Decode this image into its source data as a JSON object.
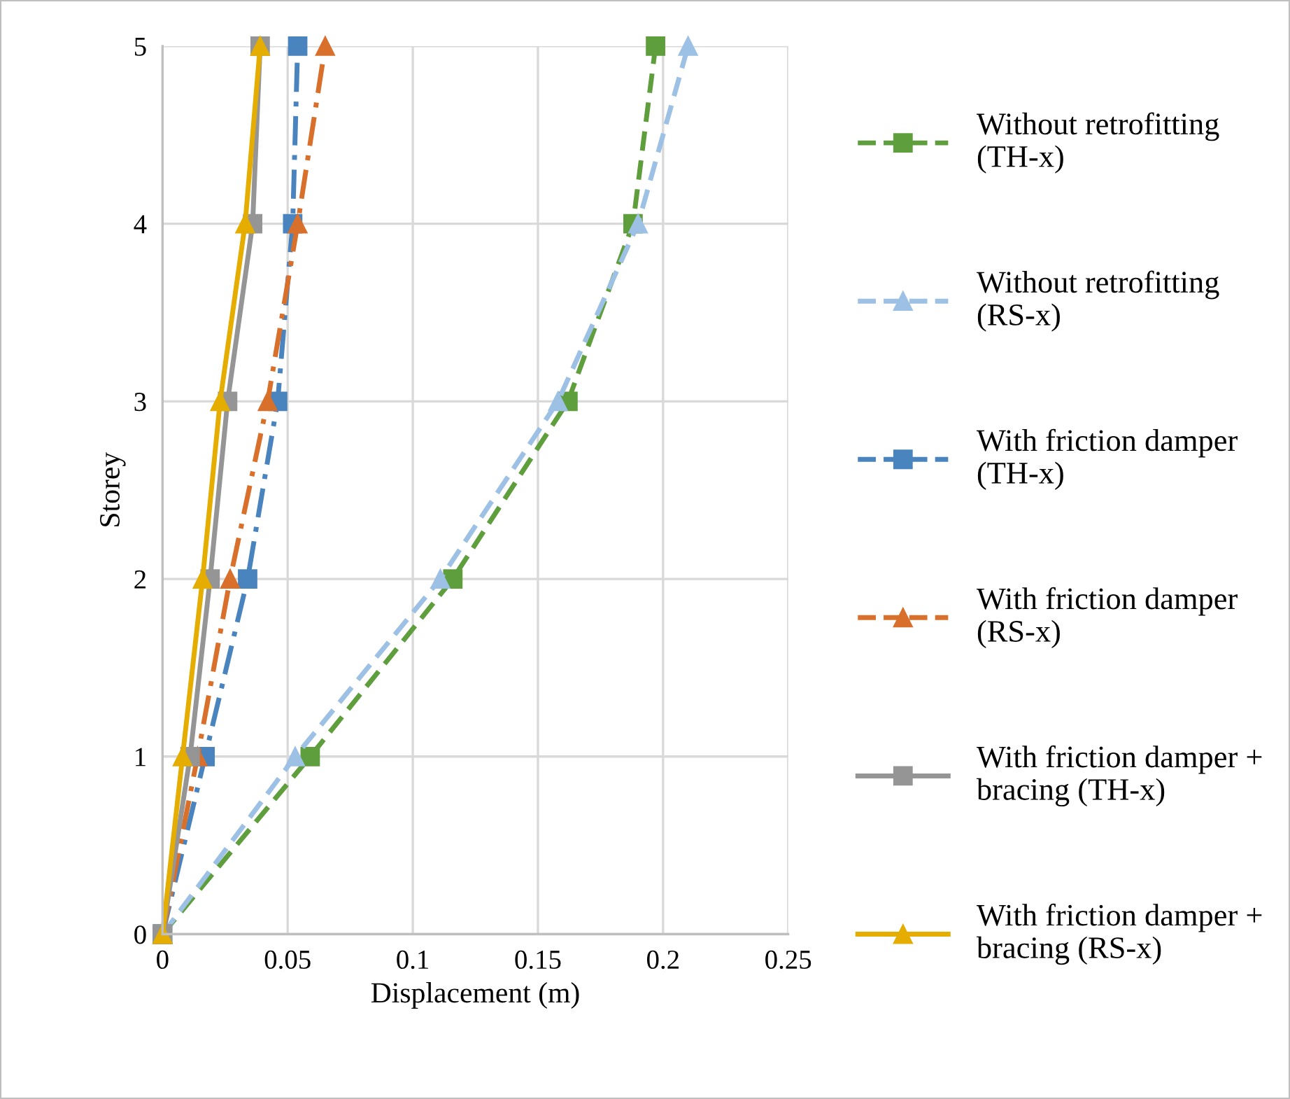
{
  "chart_data": {
    "type": "line",
    "xlabel": "Displacement (m)",
    "ylabel": "Storey",
    "xlim": [
      0,
      0.25
    ],
    "ylim": [
      0,
      5
    ],
    "xticks": [
      0,
      0.05,
      0.1,
      0.15,
      0.2,
      0.25
    ],
    "yticks": [
      0,
      1,
      2,
      3,
      4,
      5
    ],
    "grid": true,
    "legend": "right",
    "series": [
      {
        "name": "Without retrofitting (TH-x)",
        "color": "#5f9e3c",
        "marker": "square",
        "line_style": "dashed",
        "x": [
          0,
          0.059,
          0.116,
          0.162,
          0.188,
          0.197
        ],
        "values": [
          0,
          1,
          2,
          3,
          4,
          5
        ]
      },
      {
        "name": "Without retrofitting (RS-x)",
        "color": "#9dc0e5",
        "marker": "triangle",
        "line_style": "dashed",
        "x": [
          0,
          0.053,
          0.111,
          0.158,
          0.19,
          0.21
        ],
        "values": [
          0,
          1,
          2,
          3,
          4,
          5
        ]
      },
      {
        "name": "With friction damper (TH-x)",
        "color": "#4a84bf",
        "marker": "square",
        "line_style": "dashdot",
        "x": [
          0,
          0.017,
          0.034,
          0.046,
          0.052,
          0.054
        ],
        "values": [
          0,
          1,
          2,
          3,
          4,
          5
        ]
      },
      {
        "name": "With friction damper (RS-x)",
        "color": "#d8702c",
        "marker": "triangle",
        "line_style": "dashdot",
        "x": [
          0,
          0.014,
          0.027,
          0.042,
          0.054,
          0.065
        ],
        "values": [
          0,
          1,
          2,
          3,
          4,
          5
        ]
      },
      {
        "name": "With friction damper + bracing (TH-x)",
        "color": "#959595",
        "marker": "square",
        "line_style": "solid",
        "x": [
          0,
          0.011,
          0.019,
          0.026,
          0.036,
          0.039
        ],
        "values": [
          0,
          1,
          2,
          3,
          4,
          5
        ]
      },
      {
        "name": "With friction damper + bracing (RS-x)",
        "color": "#e5ad00",
        "marker": "triangle",
        "line_style": "solid",
        "x": [
          0,
          0.008,
          0.016,
          0.023,
          0.033,
          0.039
        ],
        "values": [
          0,
          1,
          2,
          3,
          4,
          5
        ]
      }
    ]
  }
}
